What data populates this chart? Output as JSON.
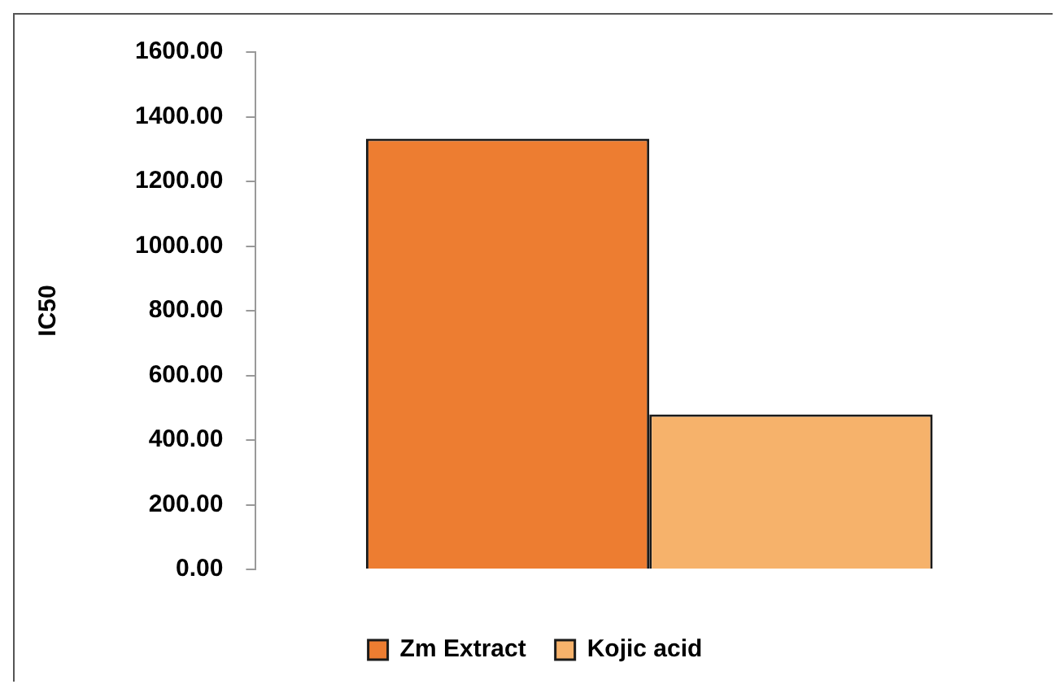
{
  "chart_data": {
    "type": "bar",
    "ylabel": "IC50",
    "categories": [
      null
    ],
    "series": [
      {
        "name": "Zm Extract",
        "color": "#ed7d31",
        "values": [
          1332
        ]
      },
      {
        "name": "Kojic acid",
        "color": "#f6b26b",
        "values": [
          479
        ]
      }
    ],
    "ylim": [
      0,
      1600
    ],
    "yticks": [
      {
        "value": 0,
        "label": "0.00"
      },
      {
        "value": 200,
        "label": "200.00"
      },
      {
        "value": 400,
        "label": "400.00"
      },
      {
        "value": 600,
        "label": "600.00"
      },
      {
        "value": 800,
        "label": "800.00"
      },
      {
        "value": 1000,
        "label": "1000.00"
      },
      {
        "value": 1200,
        "label": "1200.00"
      },
      {
        "value": 1400,
        "label": "1400.00"
      },
      {
        "value": 1600,
        "label": "1600.00"
      }
    ],
    "grid": false,
    "legend": "bottom"
  }
}
